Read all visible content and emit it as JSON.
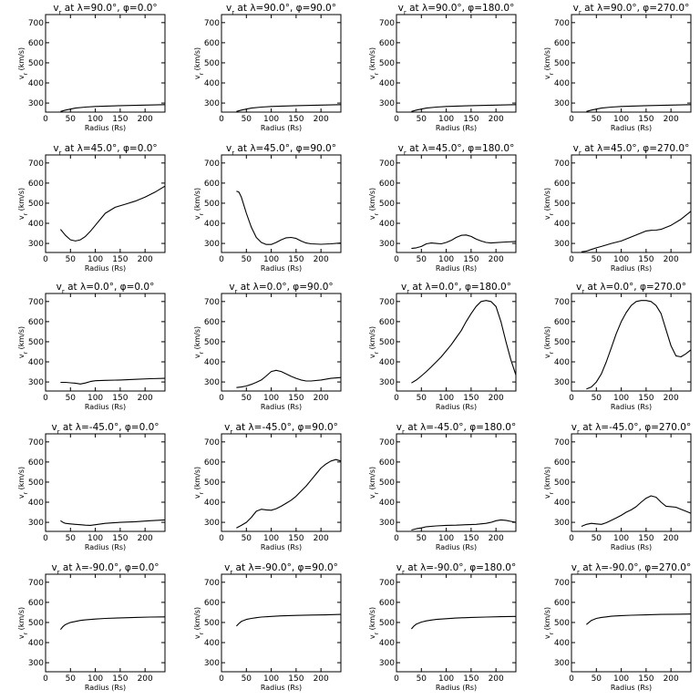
{
  "figure": {
    "xlabel": "Radius (Rs)",
    "ylabel": "v_r (km/s)",
    "xlim": [
      0,
      240
    ],
    "ylim": [
      255,
      740
    ],
    "xticks": [
      0,
      50,
      100,
      150,
      200
    ],
    "yticks": [
      300,
      400,
      500,
      600,
      700
    ]
  },
  "chart_data": [
    {
      "type": "line",
      "title": "v_r at λ=90.0°, φ=0.0°",
      "xlabel": "Radius (Rs)",
      "ylabel": "v_r (km/s)",
      "xlim": [
        0,
        240
      ],
      "ylim": [
        255,
        740
      ],
      "x": [
        30,
        40,
        60,
        80,
        100,
        150,
        200,
        240
      ],
      "y": [
        258,
        265,
        275,
        280,
        283,
        287,
        290,
        292
      ]
    },
    {
      "type": "line",
      "title": "v_r at λ=90.0°, φ=90.0°",
      "xlabel": "Radius (Rs)",
      "ylabel": "v_r (km/s)",
      "xlim": [
        0,
        240
      ],
      "ylim": [
        255,
        740
      ],
      "x": [
        30,
        40,
        60,
        80,
        100,
        150,
        200,
        240
      ],
      "y": [
        258,
        265,
        275,
        280,
        283,
        287,
        290,
        292
      ]
    },
    {
      "type": "line",
      "title": "v_r at λ=90.0°, φ=180.0°",
      "xlabel": "Radius (Rs)",
      "ylabel": "v_r (km/s)",
      "xlim": [
        0,
        240
      ],
      "ylim": [
        255,
        740
      ],
      "x": [
        30,
        40,
        60,
        80,
        100,
        150,
        200,
        240
      ],
      "y": [
        258,
        265,
        275,
        280,
        283,
        287,
        290,
        292
      ]
    },
    {
      "type": "line",
      "title": "v_r at λ=90.0°, φ=270.0°",
      "xlabel": "Radius (Rs)",
      "ylabel": "v_r (km/s)",
      "xlim": [
        0,
        240
      ],
      "ylim": [
        255,
        740
      ],
      "x": [
        30,
        40,
        60,
        80,
        100,
        150,
        200,
        240
      ],
      "y": [
        258,
        265,
        275,
        280,
        283,
        287,
        290,
        292
      ]
    },
    {
      "type": "line",
      "title": "v_r at λ=45.0°, φ=0.0°",
      "xlabel": "Radius (Rs)",
      "ylabel": "v_r (km/s)",
      "xlim": [
        0,
        240
      ],
      "ylim": [
        255,
        740
      ],
      "x": [
        30,
        40,
        50,
        60,
        70,
        80,
        90,
        100,
        110,
        120,
        140,
        160,
        180,
        200,
        220,
        240
      ],
      "y": [
        370,
        340,
        318,
        312,
        318,
        335,
        360,
        390,
        420,
        450,
        480,
        495,
        510,
        530,
        555,
        585
      ]
    },
    {
      "type": "line",
      "title": "v_r at λ=45.0°, φ=90.0°",
      "xlabel": "Radius (Rs)",
      "ylabel": "v_r (km/s)",
      "xlim": [
        0,
        240
      ],
      "ylim": [
        255,
        740
      ],
      "x": [
        30,
        35,
        40,
        50,
        60,
        70,
        80,
        90,
        100,
        110,
        120,
        130,
        140,
        150,
        160,
        170,
        180,
        200,
        220,
        240
      ],
      "y": [
        560,
        555,
        530,
        450,
        380,
        330,
        305,
        295,
        295,
        305,
        318,
        328,
        330,
        325,
        312,
        302,
        298,
        296,
        298,
        302
      ]
    },
    {
      "type": "line",
      "title": "v_r at λ=45.0°, φ=180.0°",
      "xlabel": "Radius (Rs)",
      "ylabel": "v_r (km/s)",
      "xlim": [
        0,
        240
      ],
      "ylim": [
        255,
        740
      ],
      "x": [
        30,
        40,
        50,
        60,
        70,
        80,
        90,
        100,
        110,
        120,
        130,
        140,
        150,
        160,
        170,
        180,
        190,
        200,
        220,
        240
      ],
      "y": [
        275,
        278,
        285,
        298,
        302,
        300,
        298,
        305,
        315,
        330,
        340,
        342,
        335,
        322,
        312,
        305,
        302,
        304,
        307,
        310
      ]
    },
    {
      "type": "line",
      "title": "v_r at λ=45.0°, φ=270.0°",
      "xlabel": "Radius (Rs)",
      "ylabel": "v_r (km/s)",
      "xlim": [
        0,
        240
      ],
      "ylim": [
        255,
        740
      ],
      "x": [
        20,
        30,
        40,
        50,
        60,
        80,
        100,
        120,
        140,
        150,
        160,
        170,
        180,
        200,
        220,
        240
      ],
      "y": [
        258,
        262,
        270,
        278,
        285,
        300,
        312,
        332,
        352,
        362,
        365,
        366,
        370,
        390,
        420,
        460
      ]
    },
    {
      "type": "line",
      "title": "v_r at λ=0.0°, φ=0.0°",
      "xlabel": "Radius (Rs)",
      "ylabel": "v_r (km/s)",
      "xlim": [
        0,
        240
      ],
      "ylim": [
        255,
        740
      ],
      "x": [
        30,
        40,
        50,
        60,
        70,
        80,
        90,
        100,
        120,
        150,
        180,
        210,
        240
      ],
      "y": [
        298,
        298,
        296,
        294,
        290,
        295,
        302,
        306,
        308,
        310,
        313,
        316,
        318
      ]
    },
    {
      "type": "line",
      "title": "v_r at λ=0.0°, φ=90.0°",
      "xlabel": "Radius (Rs)",
      "ylabel": "v_r (km/s)",
      "xlim": [
        0,
        240
      ],
      "ylim": [
        255,
        740
      ],
      "x": [
        30,
        40,
        50,
        60,
        70,
        80,
        90,
        100,
        110,
        120,
        130,
        140,
        150,
        160,
        170,
        180,
        200,
        220,
        240
      ],
      "y": [
        272,
        275,
        280,
        288,
        298,
        310,
        330,
        352,
        358,
        352,
        340,
        328,
        318,
        310,
        305,
        305,
        310,
        318,
        322
      ]
    },
    {
      "type": "line",
      "title": "v_r at λ=0.0°, φ=180.0°",
      "xlabel": "Radius (Rs)",
      "ylabel": "v_r (km/s)",
      "xlim": [
        0,
        240
      ],
      "ylim": [
        255,
        740
      ],
      "x": [
        30,
        40,
        50,
        60,
        70,
        80,
        90,
        100,
        110,
        120,
        130,
        140,
        150,
        160,
        170,
        180,
        190,
        200,
        210,
        220,
        230,
        240
      ],
      "y": [
        295,
        310,
        330,
        352,
        375,
        400,
        425,
        455,
        485,
        520,
        555,
        600,
        640,
        675,
        700,
        705,
        700,
        675,
        600,
        500,
        410,
        335
      ]
    },
    {
      "type": "line",
      "title": "v_r at λ=0.0°, φ=270.0°",
      "xlabel": "Radius (Rs)",
      "ylabel": "v_r (km/s)",
      "xlim": [
        0,
        240
      ],
      "ylim": [
        255,
        740
      ],
      "x": [
        30,
        40,
        50,
        60,
        70,
        80,
        90,
        100,
        110,
        120,
        130,
        140,
        150,
        160,
        170,
        180,
        190,
        200,
        210,
        220,
        230,
        240
      ],
      "y": [
        265,
        275,
        300,
        340,
        400,
        470,
        540,
        600,
        645,
        680,
        700,
        705,
        705,
        700,
        680,
        640,
        560,
        480,
        430,
        425,
        440,
        460
      ]
    },
    {
      "type": "line",
      "title": "v_r at λ=-45.0°, φ=0.0°",
      "xlabel": "Radius (Rs)",
      "ylabel": "v_r (km/s)",
      "xlim": [
        0,
        240
      ],
      "ylim": [
        255,
        740
      ],
      "x": [
        30,
        35,
        40,
        50,
        60,
        70,
        80,
        90,
        100,
        120,
        150,
        180,
        210,
        240
      ],
      "y": [
        308,
        300,
        295,
        292,
        290,
        288,
        286,
        285,
        288,
        295,
        300,
        303,
        308,
        312
      ]
    },
    {
      "type": "line",
      "title": "v_r at λ=-45.0°, φ=90.0°",
      "xlabel": "Radius (Rs)",
      "ylabel": "v_r (km/s)",
      "xlim": [
        0,
        240
      ],
      "ylim": [
        255,
        740
      ],
      "x": [
        30,
        40,
        50,
        60,
        70,
        80,
        90,
        100,
        110,
        120,
        130,
        140,
        150,
        160,
        170,
        180,
        190,
        200,
        210,
        220,
        230,
        240
      ],
      "y": [
        272,
        285,
        300,
        325,
        355,
        365,
        362,
        360,
        368,
        380,
        395,
        410,
        430,
        455,
        480,
        510,
        540,
        570,
        590,
        605,
        612,
        605
      ]
    },
    {
      "type": "line",
      "title": "v_r at λ=-45.0°, φ=180.0°",
      "xlabel": "Radius (Rs)",
      "ylabel": "v_r (km/s)",
      "xlim": [
        0,
        240
      ],
      "ylim": [
        255,
        740
      ],
      "x": [
        30,
        40,
        50,
        60,
        80,
        100,
        120,
        140,
        160,
        180,
        190,
        200,
        210,
        220,
        230,
        240
      ],
      "y": [
        262,
        268,
        272,
        278,
        282,
        285,
        286,
        288,
        290,
        295,
        300,
        308,
        312,
        310,
        305,
        300
      ]
    },
    {
      "type": "line",
      "title": "v_r at λ=-45.0°, φ=270.0°",
      "xlabel": "Radius (Rs)",
      "ylabel": "v_r (km/s)",
      "xlim": [
        0,
        240
      ],
      "ylim": [
        255,
        740
      ],
      "x": [
        20,
        30,
        40,
        50,
        60,
        70,
        80,
        90,
        100,
        110,
        120,
        130,
        140,
        150,
        160,
        170,
        180,
        190,
        200,
        210,
        220,
        230,
        240
      ],
      "y": [
        280,
        290,
        295,
        292,
        290,
        298,
        310,
        322,
        335,
        350,
        362,
        378,
        400,
        420,
        432,
        425,
        400,
        380,
        378,
        375,
        365,
        355,
        345
      ]
    },
    {
      "type": "line",
      "title": "v_r at λ=-90.0°, φ=0.0°",
      "xlabel": "Radius (Rs)",
      "ylabel": "v_r (km/s)",
      "xlim": [
        0,
        240
      ],
      "ylim": [
        255,
        740
      ],
      "x": [
        30,
        35,
        40,
        50,
        60,
        70,
        80,
        100,
        120,
        150,
        180,
        210,
        240
      ],
      "y": [
        465,
        480,
        490,
        500,
        505,
        510,
        513,
        517,
        520,
        523,
        525,
        527,
        528
      ]
    },
    {
      "type": "line",
      "title": "v_r at λ=-90.0°, φ=90.0°",
      "xlabel": "Radius (Rs)",
      "ylabel": "v_r (km/s)",
      "xlim": [
        0,
        240
      ],
      "ylim": [
        255,
        740
      ],
      "x": [
        30,
        35,
        40,
        50,
        60,
        70,
        80,
        100,
        120,
        150,
        180,
        210,
        240
      ],
      "y": [
        482,
        495,
        505,
        515,
        520,
        524,
        527,
        530,
        533,
        535,
        537,
        538,
        540
      ]
    },
    {
      "type": "line",
      "title": "v_r at λ=-90.0°, φ=180.0°",
      "xlabel": "Radius (Rs)",
      "ylabel": "v_r (km/s)",
      "xlim": [
        0,
        240
      ],
      "ylim": [
        255,
        740
      ],
      "x": [
        30,
        35,
        40,
        50,
        60,
        70,
        80,
        100,
        120,
        150,
        180,
        210,
        240
      ],
      "y": [
        468,
        482,
        492,
        502,
        508,
        512,
        515,
        519,
        522,
        525,
        527,
        529,
        530
      ]
    },
    {
      "type": "line",
      "title": "v_r at λ=-90.0°, φ=270.0°",
      "xlabel": "Radius (Rs)",
      "ylabel": "v_r (km/s)",
      "xlim": [
        0,
        240
      ],
      "ylim": [
        255,
        740
      ],
      "x": [
        30,
        35,
        40,
        50,
        60,
        70,
        80,
        100,
        120,
        150,
        180,
        210,
        240
      ],
      "y": [
        490,
        500,
        510,
        520,
        525,
        528,
        531,
        534,
        536,
        538,
        540,
        541,
        542
      ]
    }
  ]
}
